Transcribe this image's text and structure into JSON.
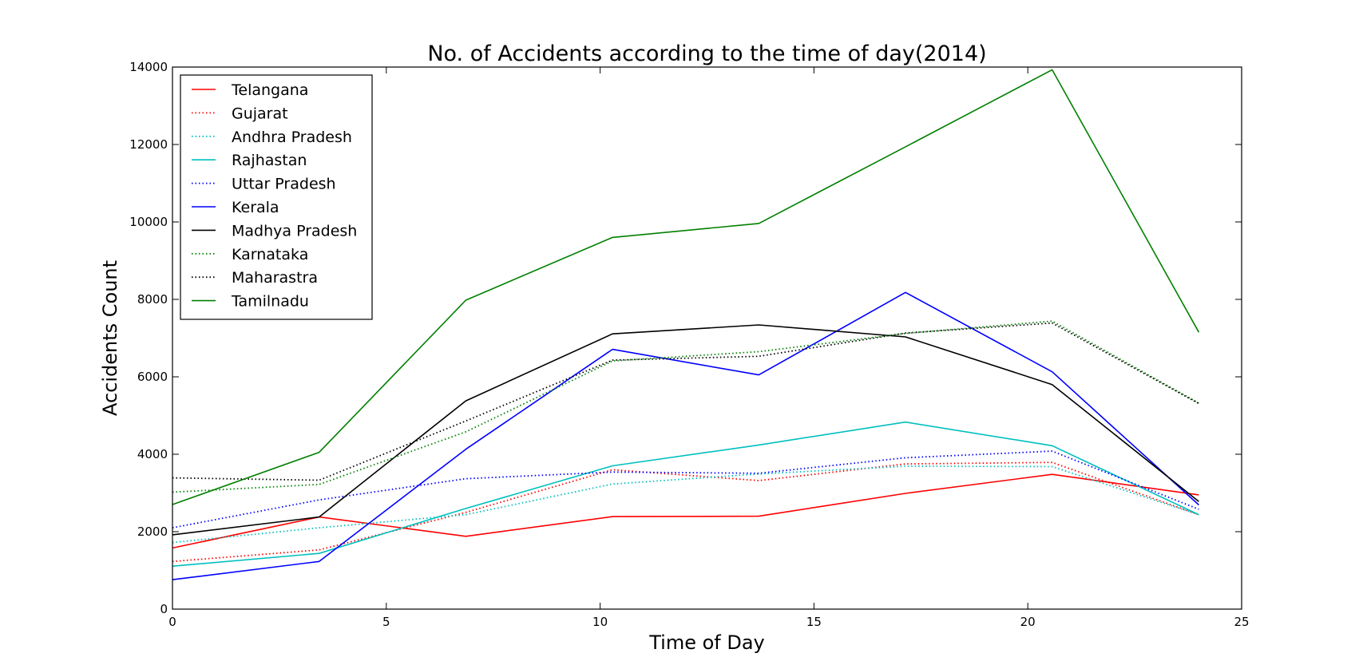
{
  "chart_data": {
    "type": "line",
    "title": "No. of Accidents according to the time of day(2014)",
    "xlabel": "Time of Day",
    "ylabel": "Accidents Count",
    "xlim": [
      0,
      25
    ],
    "ylim": [
      0,
      14000
    ],
    "xticks": [
      0,
      5,
      10,
      15,
      20,
      25
    ],
    "yticks": [
      0,
      2000,
      4000,
      6000,
      8000,
      10000,
      12000,
      14000
    ],
    "grid": false,
    "legend_position": "top-left",
    "x": [
      0,
      3.43,
      6.86,
      10.29,
      13.71,
      17.14,
      20.57,
      24
    ],
    "series": [
      {
        "name": "Telangana",
        "color": "#ff0000",
        "style": "solid",
        "values": [
          1580,
          2380,
          1880,
          2390,
          2400,
          2990,
          3480,
          2950
        ]
      },
      {
        "name": "Gujarat",
        "color": "#ff0000",
        "style": "dotted",
        "values": [
          1230,
          1530,
          2500,
          3600,
          3320,
          3750,
          3790,
          2440
        ]
      },
      {
        "name": "Andhra Pradesh",
        "color": "#00bfbf",
        "style": "dotted",
        "values": [
          1720,
          2100,
          2440,
          3230,
          3490,
          3690,
          3680,
          2440
        ]
      },
      {
        "name": "Rajhastan",
        "color": "#00bfbf",
        "style": "solid",
        "values": [
          1110,
          1440,
          2600,
          3700,
          4240,
          4830,
          4220,
          2440
        ]
      },
      {
        "name": "Uttar Pradesh",
        "color": "#0000ff",
        "style": "dotted",
        "values": [
          2100,
          2820,
          3370,
          3540,
          3510,
          3910,
          4080,
          2580
        ]
      },
      {
        "name": "Kerala",
        "color": "#0000ff",
        "style": "solid",
        "values": [
          760,
          1230,
          4130,
          6710,
          6050,
          8180,
          6130,
          2690
        ]
      },
      {
        "name": "Madhya Pradesh",
        "color": "#000000",
        "style": "solid",
        "values": [
          1920,
          2380,
          5380,
          7110,
          7340,
          7030,
          5800,
          2780
        ]
      },
      {
        "name": "Karnataka",
        "color": "#008000",
        "style": "dotted",
        "values": [
          3020,
          3220,
          4580,
          6410,
          6650,
          7120,
          7440,
          5320
        ]
      },
      {
        "name": "Maharastra",
        "color": "#000000",
        "style": "dotted",
        "values": [
          3390,
          3330,
          4860,
          6430,
          6530,
          7130,
          7390,
          5310
        ]
      },
      {
        "name": "Tamilnadu",
        "color": "#008000",
        "style": "solid",
        "values": [
          2700,
          4050,
          7980,
          9600,
          9960,
          11940,
          13930,
          7150
        ]
      }
    ]
  }
}
